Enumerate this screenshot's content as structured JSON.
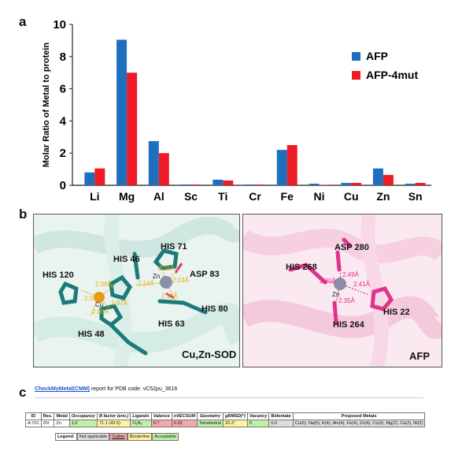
{
  "panels": {
    "a": "a",
    "b": "b",
    "c": "c"
  },
  "chart_data": {
    "type": "bar",
    "ylabel": "Molar Ratio of Metal to protein",
    "ylim": [
      0,
      10
    ],
    "yticks": [
      "0",
      "2",
      "4",
      "6",
      "8",
      "10"
    ],
    "categories": [
      "Li",
      "Mg",
      "Al",
      "Sc",
      "Ti",
      "Cr",
      "Fe",
      "Ni",
      "Cu",
      "Zn",
      "Sn"
    ],
    "series": [
      {
        "name": "AFP",
        "color": "#1f6fbf",
        "values": [
          0.8,
          9.05,
          2.75,
          0.05,
          0.35,
          0.05,
          2.2,
          0.1,
          0.15,
          1.05,
          0.1
        ]
      },
      {
        "name": "AFP-4mut",
        "color": "#ee1c24",
        "values": [
          1.05,
          7.0,
          2.0,
          0.05,
          0.3,
          0.05,
          2.5,
          0.02,
          0.15,
          0.65,
          0.15
        ]
      }
    ],
    "legend_position": "right"
  },
  "left": {
    "labels": [
      "HIS 71",
      "HIS 46",
      "HIS 120",
      "ASP 83",
      "HIS 80",
      "HIS 63",
      "HIS 48"
    ],
    "ions": [
      "Zn",
      "Cu"
    ],
    "distances": [
      "2.15Å",
      "2.03Å",
      "2.14Å",
      "2.13Å",
      "2.08Å",
      "2.07Å",
      "2.08Å",
      "2.07Å"
    ],
    "title": "Cu,Zn-SOD"
  },
  "right": {
    "labels": [
      "ASP 280",
      "HIS 268",
      "HIS 264",
      "HIS 22"
    ],
    "ion": "Zn",
    "distances": [
      "2.49Å",
      "2.30Å",
      "2.41Å",
      "2.35Å"
    ],
    "title": "AFP"
  },
  "cmm": {
    "link": "CheckMyMetal(CMM)",
    "text": " report for PDB code: vC52pu_3616",
    "headers": [
      "ID",
      "Res.",
      "Metal",
      "Occupancy",
      "B factor (env.)",
      "Ligands",
      "Valence",
      "nVECSUM",
      "Geometry",
      "gRMSD(°)",
      "Vacancy",
      "Bidentate",
      "Proposed Metals"
    ],
    "row": [
      "A:701",
      "ZN",
      "Zn",
      "1.0",
      "71.1 (43.5)",
      "O₁N₃",
      "0.7",
      "0.33",
      "Tetrahedral",
      "20.2°",
      "0",
      "0.0",
      "Cu(6), Na(5), K(4), Mn(4), Fe(4), Zn(4), Co(3), Mg(2), Ca(2), Ni(2)"
    ],
    "legend": [
      "Legend:",
      "Not applicable",
      "Outlier",
      "Borderline",
      "Acceptable"
    ]
  }
}
